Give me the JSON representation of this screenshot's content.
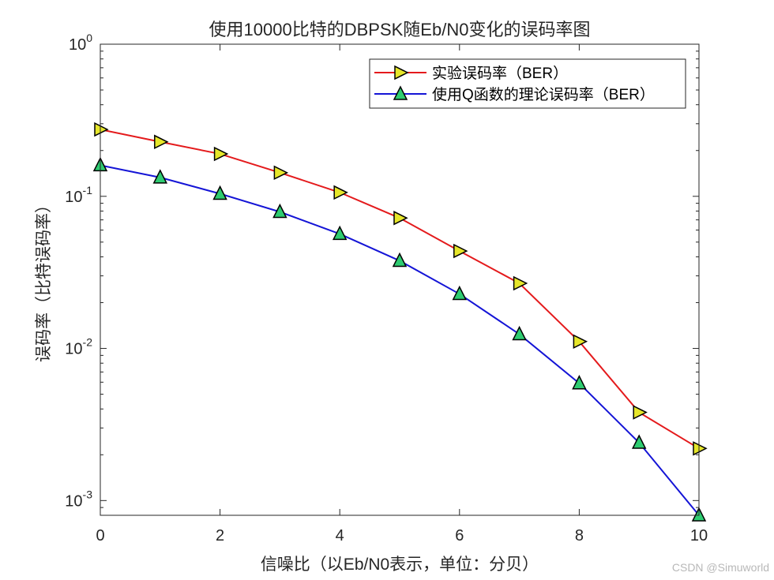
{
  "chart_data": {
    "type": "line",
    "title": "使用10000比特的DBPSK随Eb/N0变化的误码率图",
    "xlabel": "信噪比（以Eb/N0表示，单位：分贝）",
    "ylabel": "误码率（比特误码率）",
    "xlim": [
      0,
      10
    ],
    "ylim": [
      0.0008,
      1
    ],
    "yscale": "log",
    "x_ticks": [
      "0",
      "2",
      "4",
      "6",
      "8",
      "10"
    ],
    "y_ticks": [
      {
        "base": "10",
        "exp": "0"
      },
      {
        "base": "10",
        "exp": "-1"
      },
      {
        "base": "10",
        "exp": "-2"
      },
      {
        "base": "10",
        "exp": "-3"
      }
    ],
    "grid": false,
    "legend_position": "top-right",
    "x": [
      0,
      1,
      2,
      3,
      4,
      5,
      6,
      7,
      8,
      9,
      10
    ],
    "series": [
      {
        "name": "实验误码率（BER）",
        "color": "#e41a1c",
        "marker": "triangle-right",
        "marker_fill": "#e6e62a",
        "values": [
          0.275,
          0.228,
          0.19,
          0.143,
          0.106,
          0.072,
          0.0437,
          0.0268,
          0.0111,
          0.0038,
          0.0022
        ]
      },
      {
        "name": "使用Q函数的理论误码率（BER）",
        "color": "#1414d6",
        "marker": "triangle-up",
        "marker_fill": "#2ecc71",
        "values": [
          0.16,
          0.133,
          0.104,
          0.079,
          0.0566,
          0.0377,
          0.0228,
          0.0124,
          0.0059,
          0.0024,
          0.0008
        ]
      }
    ]
  },
  "watermark": "CSDN @Simuworld"
}
